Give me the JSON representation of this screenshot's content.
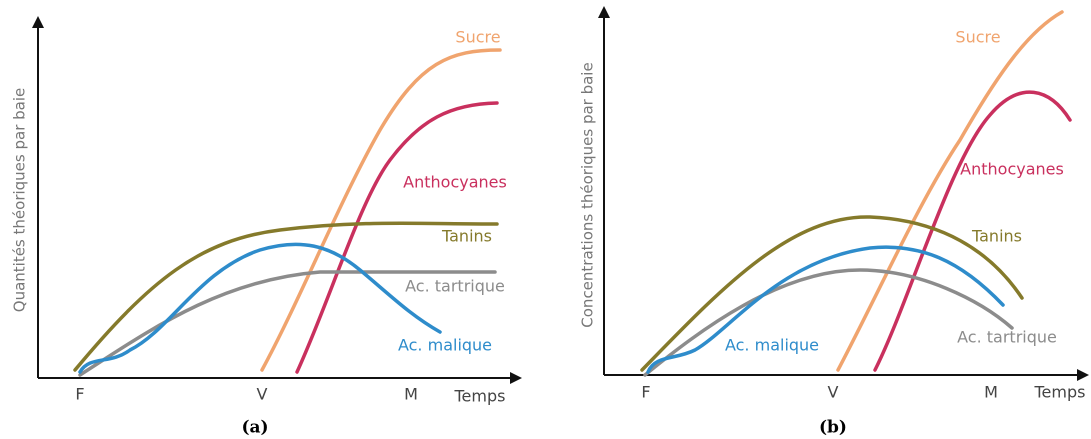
{
  "panels": [
    {
      "caption": "(a)",
      "y_label": "Quantités théoriques par baie",
      "x_label": "Temps",
      "x_ticks": [
        "F",
        "V",
        "M"
      ],
      "curves": [
        {
          "label": "Sucre",
          "color": "#f0a46e"
        },
        {
          "label": "Anthocyanes",
          "color": "#c9305e"
        },
        {
          "label": "Tanins",
          "color": "#857a2b"
        },
        {
          "label": "Ac. tartrique",
          "color": "#8c8c8c"
        },
        {
          "label": "Ac. malique",
          "color": "#2e8ccb"
        }
      ]
    },
    {
      "caption": "(b)",
      "y_label": "Concentrations théoriques par baie",
      "x_label": "Temps",
      "x_ticks": [
        "F",
        "V",
        "M"
      ],
      "curves": [
        {
          "label": "Sucre",
          "color": "#f0a46e"
        },
        {
          "label": "Anthocyanes",
          "color": "#c9305e"
        },
        {
          "label": "Tanins",
          "color": "#857a2b"
        },
        {
          "label": "Ac. tartrique",
          "color": "#8c8c8c"
        },
        {
          "label": "Ac. malique",
          "color": "#2e8ccb"
        }
      ]
    }
  ]
}
